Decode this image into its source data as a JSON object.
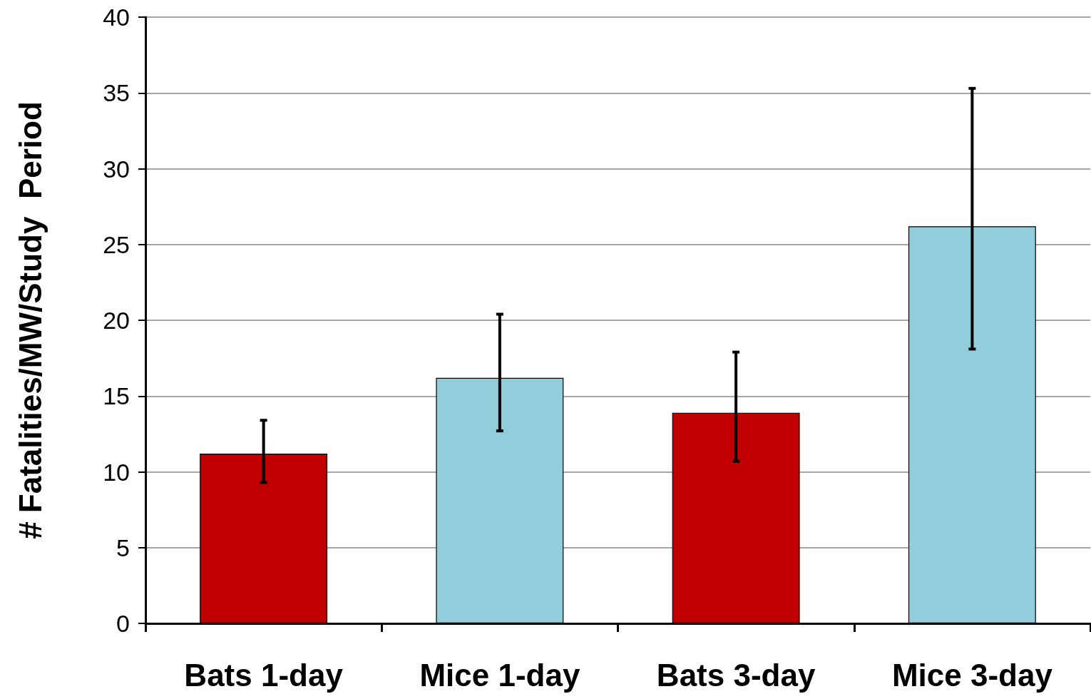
{
  "chart_data": {
    "type": "bar",
    "ylabel": "# Fatalities/MW/Study  Period",
    "categories": [
      "Bats 1-day",
      "Mice 1-day",
      "Bats 3-day",
      "Mice 3-day"
    ],
    "values": [
      11.2,
      16.2,
      13.9,
      26.2
    ],
    "colors": [
      "#c00000",
      "#92cddc",
      "#c00000",
      "#92cddc"
    ],
    "errors": [
      [
        9.3,
        13.4
      ],
      [
        12.7,
        20.4
      ],
      [
        10.7,
        17.9
      ],
      [
        18.1,
        35.3
      ]
    ],
    "ylim": [
      0,
      40
    ],
    "yticks": [
      0,
      5,
      10,
      15,
      20,
      25,
      30,
      35,
      40
    ],
    "grid": "y"
  }
}
